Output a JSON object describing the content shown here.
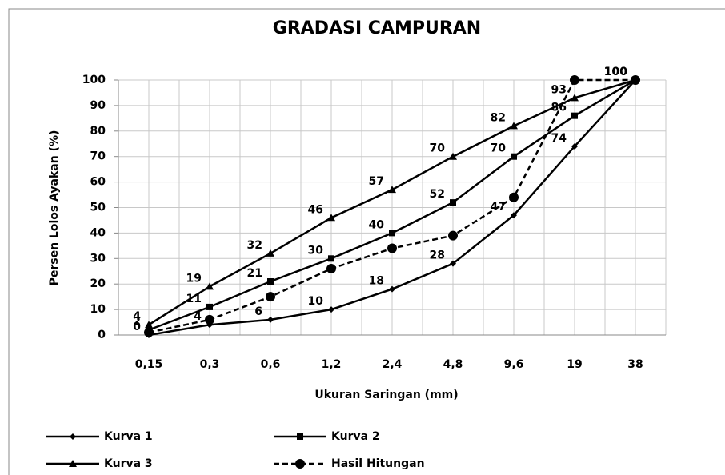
{
  "chart_data": {
    "type": "line",
    "title": "GRADASI CAMPURAN",
    "x_label": "Ukuran Saringan (mm)",
    "y_label": "Persen Lolos Ayakan (%)",
    "categories": [
      "0,15",
      "0,3",
      "0,6",
      "1,2",
      "2,4",
      "4,8",
      "9,6",
      "19",
      "38"
    ],
    "series": [
      {
        "name": "Kurva 1",
        "color": "#000000",
        "marker": "diamond",
        "dashed": false,
        "data_labels": true,
        "values": [
          0,
          4,
          6,
          10,
          18,
          28,
          47,
          74,
          100
        ]
      },
      {
        "name": "Kurva 2",
        "color": "#000000",
        "marker": "square",
        "dashed": false,
        "data_labels": true,
        "values": [
          2,
          11,
          21,
          30,
          40,
          52,
          70,
          86,
          100
        ]
      },
      {
        "name": "Kurva 3",
        "color": "#000000",
        "marker": "triangle",
        "dashed": false,
        "data_labels": true,
        "values": [
          4,
          19,
          32,
          46,
          57,
          70,
          82,
          93,
          100
        ]
      },
      {
        "name": "Hasil Hitungan",
        "color": "#000000",
        "marker": "circle",
        "dashed": true,
        "data_labels": false,
        "values": [
          1,
          6,
          15,
          26,
          34,
          39,
          54,
          100,
          100
        ]
      }
    ],
    "ylim": [
      0,
      100
    ],
    "yticks": [
      0,
      10,
      20,
      30,
      40,
      50,
      60,
      70,
      80,
      90,
      100
    ],
    "grid": true,
    "legend": "bottom"
  }
}
